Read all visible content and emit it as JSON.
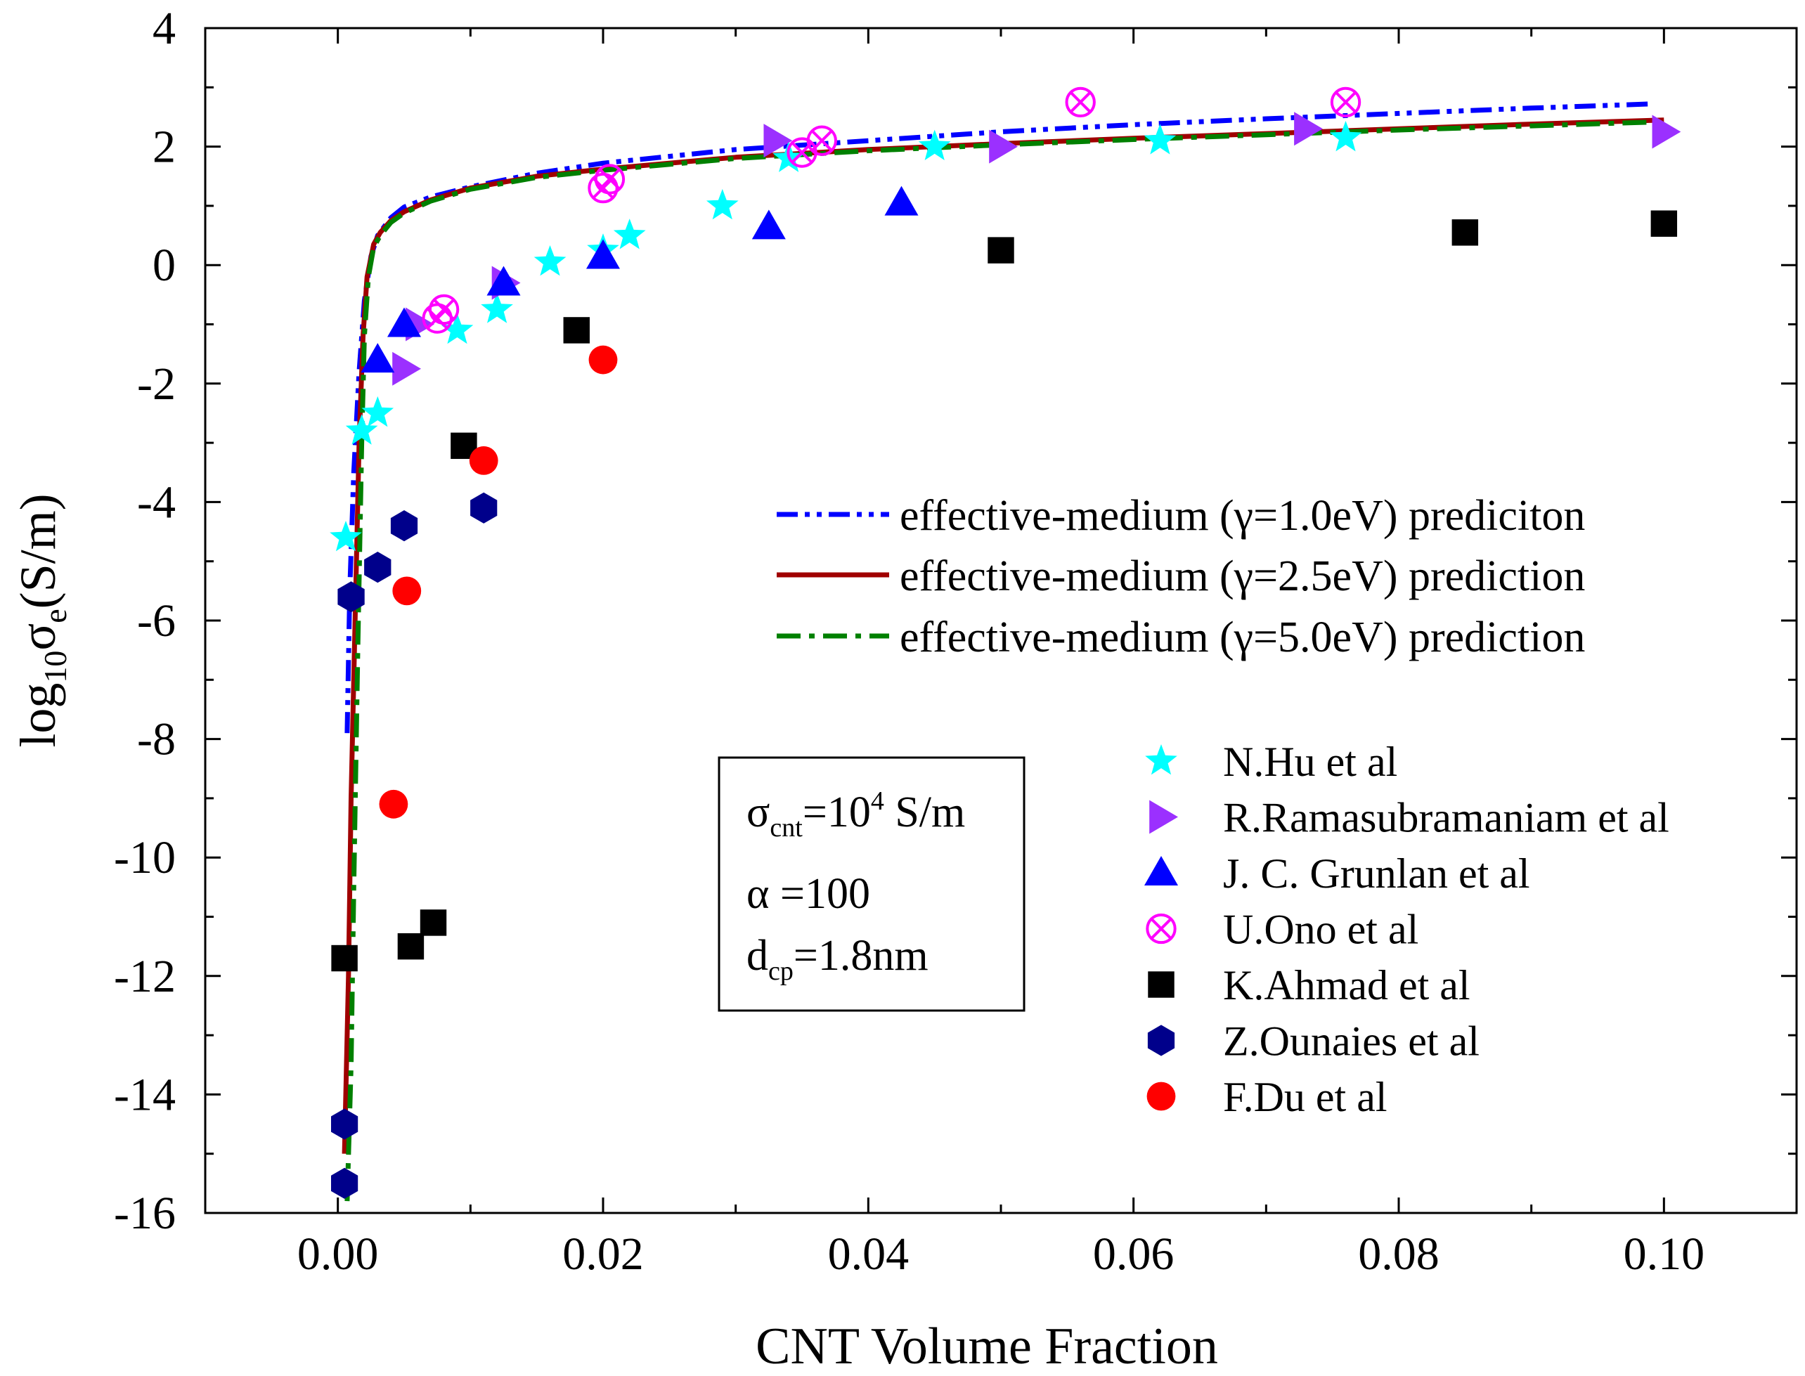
{
  "chart_data": {
    "type": "scatter",
    "xlabel": "CNT Volume Fraction",
    "ylabel": {
      "main": "log",
      "sub1": "10",
      "sigma": "σ",
      "sub2": "e",
      "unit": "(S/m)"
    },
    "xlim": [
      -0.01,
      0.11
    ],
    "ylim": [
      -16,
      4
    ],
    "xticks": [
      {
        "value": 0.0,
        "label": "0.00"
      },
      {
        "value": 0.02,
        "label": "0.02"
      },
      {
        "value": 0.04,
        "label": "0.04"
      },
      {
        "value": 0.06,
        "label": "0.06"
      },
      {
        "value": 0.08,
        "label": "0.08"
      },
      {
        "value": 0.1,
        "label": "0.10"
      }
    ],
    "yticks": [
      {
        "value": 4,
        "label": "4"
      },
      {
        "value": 2,
        "label": "2"
      },
      {
        "value": 0,
        "label": "0"
      },
      {
        "value": -2,
        "label": "-2"
      },
      {
        "value": -4,
        "label": "-4"
      },
      {
        "value": -6,
        "label": "-6"
      },
      {
        "value": -8,
        "label": "-8"
      },
      {
        "value": -10,
        "label": "-10"
      },
      {
        "value": -12,
        "label": "-12"
      },
      {
        "value": -14,
        "label": "-14"
      },
      {
        "value": -16,
        "label": "-16"
      }
    ],
    "lines": [
      {
        "name": "effective-medium (γ=1.0eV) prediciton",
        "color": "#0000ff",
        "dash": "dashdotdot",
        "x": [
          0.0007,
          0.0009,
          0.0012,
          0.0016,
          0.002,
          0.0025,
          0.003,
          0.004,
          0.005,
          0.007,
          0.01,
          0.015,
          0.02,
          0.03,
          0.04,
          0.05,
          0.06,
          0.07,
          0.08,
          0.09,
          0.099
        ],
        "y": [
          -7.9,
          -5.5,
          -3.5,
          -1.8,
          -0.6,
          0.15,
          0.5,
          0.8,
          0.98,
          1.15,
          1.32,
          1.55,
          1.72,
          1.95,
          2.1,
          2.25,
          2.37,
          2.47,
          2.56,
          2.65,
          2.72
        ]
      },
      {
        "name": "effective-medium (γ=2.5eV) prediction",
        "color": "#a00000",
        "dash": "solid",
        "x": [
          0.0005,
          0.0008,
          0.001,
          0.0013,
          0.0016,
          0.0019,
          0.0022,
          0.0027,
          0.0032,
          0.004,
          0.005,
          0.007,
          0.01,
          0.015,
          0.02,
          0.03,
          0.04,
          0.05,
          0.06,
          0.07,
          0.08,
          0.09,
          0.1
        ],
        "y": [
          -15.0,
          -12.0,
          -9.0,
          -6.0,
          -3.0,
          -1.2,
          -0.2,
          0.35,
          0.55,
          0.75,
          0.9,
          1.1,
          1.3,
          1.5,
          1.62,
          1.82,
          1.95,
          2.05,
          2.14,
          2.22,
          2.3,
          2.38,
          2.45
        ]
      },
      {
        "name": "effective-medium (γ=5.0eV) prediction",
        "color": "#008000",
        "dash": "dashdot",
        "x": [
          0.0007,
          0.001,
          0.0012,
          0.0015,
          0.0018,
          0.002,
          0.0023,
          0.0027,
          0.0032,
          0.004,
          0.005,
          0.007,
          0.01,
          0.015,
          0.02,
          0.03,
          0.04,
          0.05,
          0.06,
          0.07,
          0.08,
          0.09,
          0.1
        ],
        "y": [
          -15.8,
          -13.5,
          -10.5,
          -6.5,
          -3.0,
          -1.2,
          -0.2,
          0.3,
          0.5,
          0.72,
          0.88,
          1.08,
          1.28,
          1.48,
          1.6,
          1.8,
          1.93,
          2.03,
          2.12,
          2.2,
          2.28,
          2.35,
          2.42
        ]
      }
    ],
    "series": [
      {
        "name": "N.Hu et al",
        "marker": "star",
        "color": "#00ffff",
        "x": [
          0.0006,
          0.0018,
          0.003,
          0.009,
          0.012,
          0.016,
          0.02,
          0.022,
          0.029,
          0.034,
          0.045,
          0.062,
          0.076
        ],
        "y": [
          -4.6,
          -2.8,
          -2.5,
          -1.1,
          -0.75,
          0.05,
          0.25,
          0.5,
          1.0,
          1.8,
          2.0,
          2.1,
          2.15
        ]
      },
      {
        "name": "R.Ramasubramaniam et al",
        "marker": "triangle-right",
        "color": "#9b30ff",
        "x": [
          0.005,
          0.006,
          0.0125,
          0.033,
          0.05,
          0.073,
          0.1
        ],
        "y": [
          -1.75,
          -1.0,
          -0.3,
          2.1,
          2.0,
          2.3,
          2.25
        ]
      },
      {
        "name": "J. C. Grunlan et al",
        "marker": "triangle-up",
        "color": "#0000ff",
        "x": [
          0.003,
          0.005,
          0.0125,
          0.02,
          0.0325,
          0.0425
        ],
        "y": [
          -1.6,
          -1.0,
          -0.3,
          0.15,
          0.65,
          1.05
        ]
      },
      {
        "name": "U.Ono et al",
        "marker": "circle-x",
        "color": "#ff00ff",
        "x": [
          0.0075,
          0.008,
          0.02,
          0.0205,
          0.035,
          0.0365,
          0.056,
          0.076
        ],
        "y": [
          -0.9,
          -0.75,
          1.3,
          1.45,
          1.9,
          2.1,
          2.75,
          2.75
        ]
      },
      {
        "name": "K.Ahmad et al",
        "marker": "square",
        "color": "#000000",
        "x": [
          0.0005,
          0.0055,
          0.0072,
          0.0095,
          0.018,
          0.05,
          0.085,
          0.1
        ],
        "y": [
          -11.7,
          -11.5,
          -11.1,
          -3.05,
          -1.1,
          0.25,
          0.55,
          0.7
        ]
      },
      {
        "name": "Z.Ounaies et al",
        "marker": "hexagon",
        "color": "#00008b",
        "x": [
          0.0005,
          0.0005,
          0.001,
          0.003,
          0.005,
          0.011
        ],
        "y": [
          -15.5,
          -14.5,
          -5.6,
          -5.1,
          -4.4,
          -4.1
        ]
      },
      {
        "name": "F.Du et al",
        "marker": "circle",
        "color": "#ff0000",
        "x": [
          0.0042,
          0.0052,
          0.011,
          0.02
        ],
        "y": [
          -9.1,
          -5.5,
          -3.3,
          -1.6
        ]
      }
    ],
    "parameter_box": [
      {
        "sym": "σ",
        "sub": "cnt",
        "eq": "=10",
        "sup": "4",
        "rest": " S/m"
      },
      {
        "sym": "α",
        "sub": "",
        "eq": " =100",
        "sup": "",
        "rest": ""
      },
      {
        "sym": "d",
        "sub": "cp",
        "eq": "=1.8nm",
        "sup": "",
        "rest": ""
      }
    ]
  }
}
